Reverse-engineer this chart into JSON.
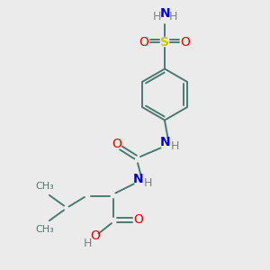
{
  "background_color": "#ebebeb",
  "bond_color": "#4a7a6e",
  "atom_colors": {
    "N": "#0000ee",
    "O": "#ee0000",
    "S": "#cccc00",
    "H": "#808080",
    "C": "#4a7a6e"
  },
  "figsize": [
    3.0,
    3.0
  ],
  "dpi": 100
}
